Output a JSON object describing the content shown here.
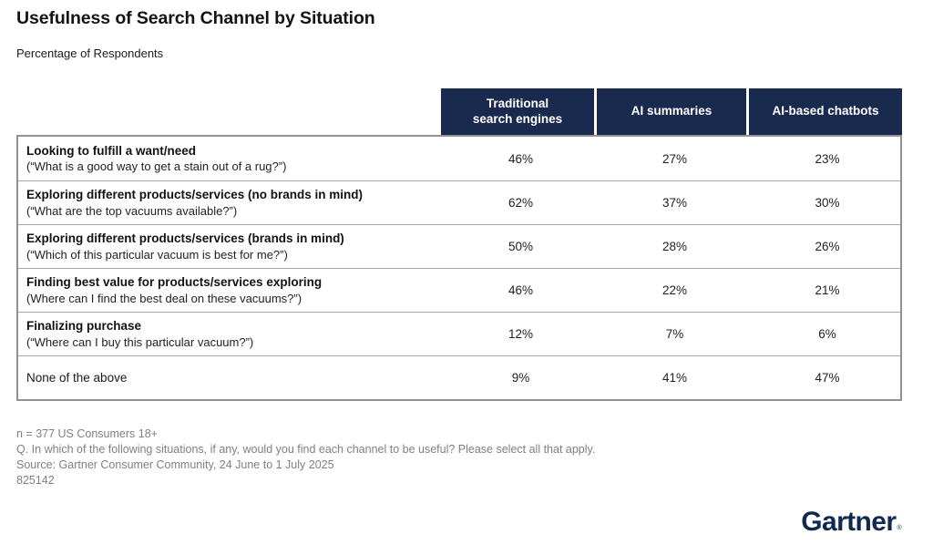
{
  "header": {
    "title": "Usefulness of Search Channel by Situation",
    "subtitle": "Percentage of Respondents"
  },
  "table": {
    "columns": [
      "Traditional\nsearch engines",
      "AI summaries",
      "AI-based chatbots"
    ],
    "rows": [
      {
        "label": "Looking to fulfill a want/need",
        "caption": "(“What is a good way to get a stain out of a rug?”)",
        "values": [
          "46%",
          "27%",
          "23%"
        ]
      },
      {
        "label": "Exploring different products/services (no brands in mind)",
        "caption": "(“What are the top vacuums available?”)",
        "values": [
          "62%",
          "37%",
          "30%"
        ]
      },
      {
        "label": "Exploring different products/services (brands in mind)",
        "caption": "(“Which of this particular vacuum is best for me?”)",
        "values": [
          "50%",
          "28%",
          "26%"
        ]
      },
      {
        "label": "Finding best value for products/services exploring",
        "caption": "(Where can I find the best deal on these vacuums?”)",
        "values": [
          "46%",
          "22%",
          "21%"
        ]
      },
      {
        "label": "Finalizing purchase",
        "caption": "(“Where can I buy this particular vacuum?”)",
        "values": [
          "12%",
          "7%",
          "6%"
        ]
      },
      {
        "label": "None of the above",
        "caption": "",
        "values": [
          "9%",
          "41%",
          "47%"
        ]
      }
    ]
  },
  "footnotes": [
    "n = 377 US Consumers 18+",
    "Q. In which of the following situations, if any, would you find each channel to be useful? Please select all that apply.",
    "Source: Gartner Consumer Community, 24 June to 1 July 2025",
    "825142"
  ],
  "logo": {
    "text": "Gartner",
    "mark": "®"
  },
  "colors": {
    "header_bg": "#1a2a4f",
    "logo_color": "#12294f",
    "border_outer": "#909396",
    "border_inner": "#a6a8ab",
    "footnote_gray": "#7d8083"
  },
  "chart_data": {
    "type": "table",
    "title": "Usefulness of Search Channel by Situation",
    "subtitle": "Percentage of Respondents",
    "unit": "%",
    "categories": [
      "Looking to fulfill a want/need",
      "Exploring different products/services (no brands in mind)",
      "Exploring different products/services (brands in mind)",
      "Finding best value for products/services exploring",
      "Finalizing purchase",
      "None of the above"
    ],
    "category_examples": [
      "What is a good way to get a stain out of a rug?",
      "What are the top vacuums available?",
      "Which of this particular vacuum is best for me?",
      "Where can I find the best deal on these vacuums?",
      "Where can I buy this particular vacuum?",
      ""
    ],
    "series": [
      {
        "name": "Traditional search engines",
        "values": [
          46,
          62,
          50,
          46,
          12,
          9
        ]
      },
      {
        "name": "AI summaries",
        "values": [
          27,
          37,
          28,
          22,
          7,
          41
        ]
      },
      {
        "name": "AI-based chatbots",
        "values": [
          23,
          30,
          26,
          21,
          6,
          47
        ]
      }
    ]
  }
}
